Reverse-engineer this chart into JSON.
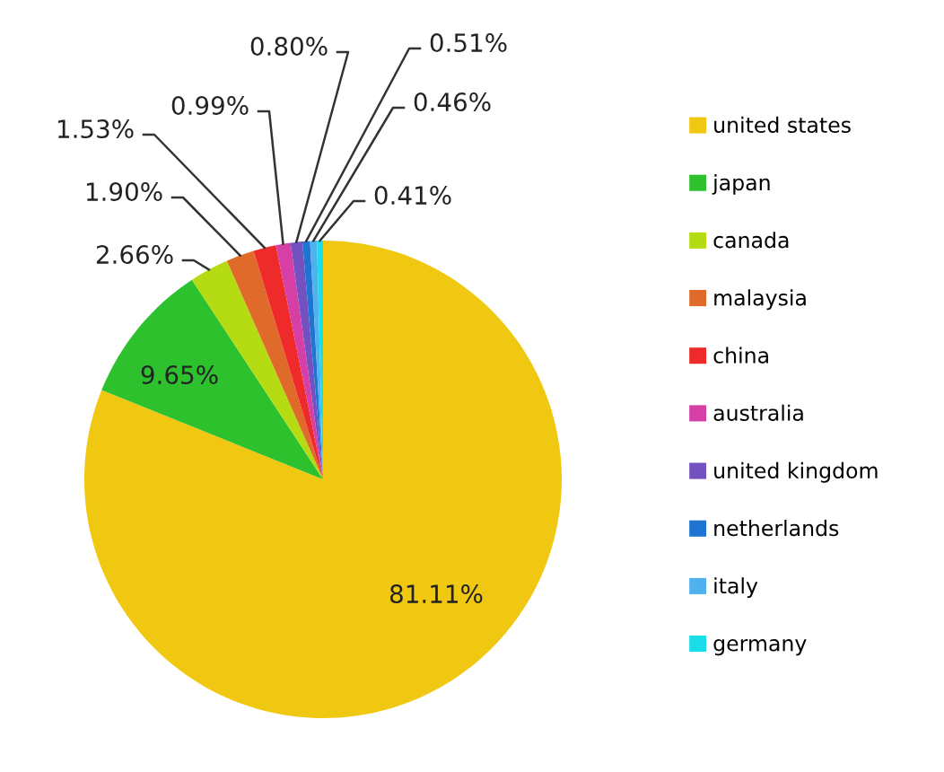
{
  "chart_data": {
    "type": "pie",
    "categories": [
      "united states",
      "japan",
      "canada",
      "malaysia",
      "china",
      "australia",
      "united kingdom",
      "netherlands",
      "italy",
      "germany"
    ],
    "values": [
      81.11,
      9.65,
      2.66,
      1.9,
      1.53,
      0.99,
      0.8,
      0.51,
      0.46,
      0.41
    ],
    "colors": [
      "#f0c811",
      "#2ec12e",
      "#b5dc12",
      "#e06a2a",
      "#ee2a2a",
      "#d63fa5",
      "#7351c1",
      "#1e74d0",
      "#4fb2ee",
      "#19dde8"
    ],
    "value_labels": [
      "81.11%",
      "9.65%",
      "2.66%",
      "1.90%",
      "1.53%",
      "0.99%",
      "0.80%",
      "0.51%",
      "0.46%",
      "0.41%"
    ],
    "legend": "right"
  }
}
